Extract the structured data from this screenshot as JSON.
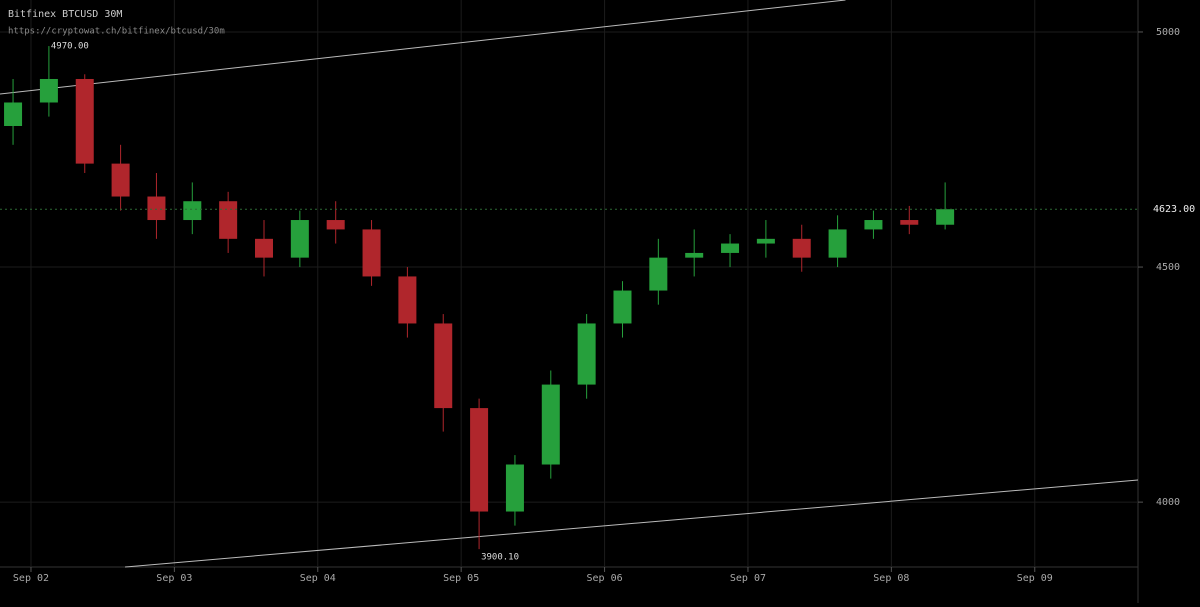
{
  "chart_data": {
    "type": "candlestick",
    "title": "Bitfinex BTCUSD 30M",
    "subtitle": "https://cryptowat.ch/bitfinex/btcusd/30m",
    "x": [
      -0.125,
      0.125,
      0.375,
      0.625,
      0.875,
      1.125,
      1.375,
      1.625,
      1.875,
      2.125,
      2.375,
      2.625,
      2.875,
      3.125,
      3.375,
      3.625,
      3.875,
      4.125,
      4.375,
      4.625,
      4.875,
      5.125,
      5.375,
      5.625,
      5.875,
      6.125,
      6.375
    ],
    "open": [
      4800,
      4850,
      4900,
      4720,
      4650,
      4600,
      4640,
      4560,
      4520,
      4600,
      4580,
      4480,
      4380,
      4200,
      3980,
      4080,
      4250,
      4380,
      4450,
      4520,
      4530,
      4550,
      4560,
      4520,
      4580,
      4600,
      4590
    ],
    "high": [
      4900,
      4970,
      4910,
      4760,
      4700,
      4680,
      4660,
      4600,
      4620,
      4640,
      4600,
      4500,
      4400,
      4220,
      4100,
      4280,
      4400,
      4470,
      4560,
      4580,
      4570,
      4600,
      4590,
      4610,
      4620,
      4630,
      4680
    ],
    "low": [
      4760,
      4820,
      4700,
      4620,
      4560,
      4570,
      4530,
      4480,
      4500,
      4550,
      4460,
      4350,
      4150,
      3900.1,
      3950,
      4050,
      4220,
      4350,
      4420,
      4480,
      4500,
      4520,
      4490,
      4500,
      4560,
      4570,
      4580
    ],
    "close": [
      4850,
      4900,
      4720,
      4650,
      4600,
      4640,
      4560,
      4520,
      4600,
      4580,
      4480,
      4380,
      4200,
      3980,
      4080,
      4250,
      4380,
      4450,
      4520,
      4530,
      4550,
      4560,
      4520,
      4580,
      4600,
      4590,
      4623
    ],
    "up_color": "#26a03c",
    "down_color": "#b0262c",
    "trendlines": [
      {
        "x": [
          -0.216,
          5.68
        ],
        "y": [
          4868,
          5068
        ]
      },
      {
        "x": [
          0.656,
          7.72
        ],
        "y": [
          3862,
          4047
        ]
      }
    ],
    "annotations": [
      {
        "text": "4970.00",
        "x": 0.125,
        "y": 4970
      },
      {
        "text": "3900.10",
        "x": 3.125,
        "y": 3900.1
      }
    ],
    "last_price": {
      "value": 4623,
      "label": "4623.00"
    },
    "xlim": [
      -0.216,
      7.72
    ],
    "ylim": [
      3862,
      5068
    ],
    "xticks": [
      {
        "value": 0,
        "label": "Sep 02"
      },
      {
        "value": 1,
        "label": "Sep 03"
      },
      {
        "value": 2,
        "label": "Sep 04"
      },
      {
        "value": 3,
        "label": "Sep 05"
      },
      {
        "value": 4,
        "label": "Sep 06"
      },
      {
        "value": 5,
        "label": "Sep 07"
      },
      {
        "value": 6,
        "label": "Sep 08"
      },
      {
        "value": 7,
        "label": "Sep 09"
      }
    ],
    "yticks": [
      4000,
      4500,
      5000
    ],
    "grid": true
  }
}
